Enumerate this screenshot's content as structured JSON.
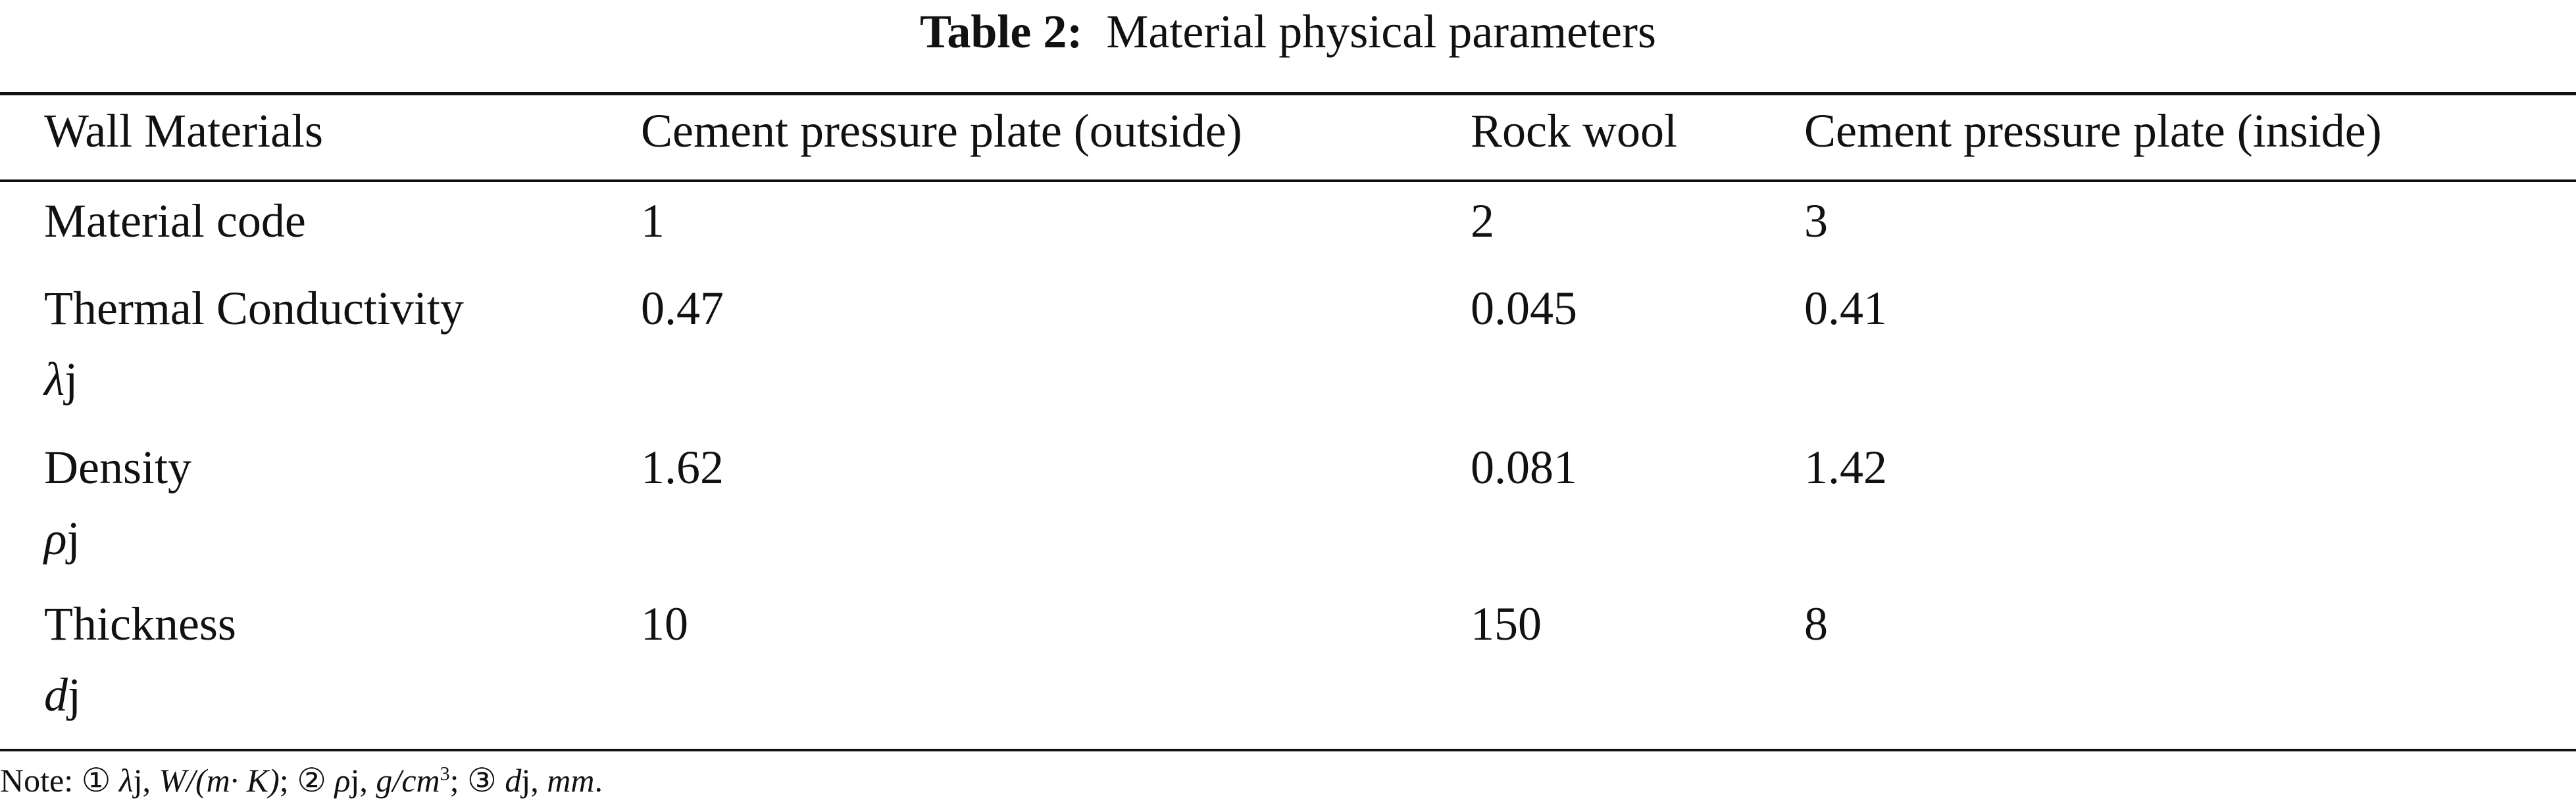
{
  "title": {
    "label": "Table 2:",
    "text": "Material physical parameters"
  },
  "table": {
    "header": [
      "Wall Materials",
      "Cement pressure plate (outside)",
      "Rock wool",
      "Cement pressure plate (inside)"
    ],
    "rows": [
      [
        "Material code",
        "1",
        "2",
        "3"
      ],
      [
        {
          "name": "Thermal Conductivity",
          "symbol": "λ",
          "suffix": "j"
        },
        "0.47",
        "0.045",
        "0.41"
      ],
      [
        {
          "name": "Density",
          "symbol": "ρ",
          "suffix": "j"
        },
        "1.62",
        "0.081",
        "1.42"
      ],
      [
        {
          "name": "Thickness",
          "symbol": "d",
          "suffix": "j"
        },
        "10",
        "150",
        "8"
      ]
    ]
  },
  "note": [
    "Note: ① ",
    "λ",
    "j, ",
    "W/(m· K)",
    "; ② ",
    "ρ",
    "j, ",
    "g/cm",
    "3",
    "; ③ ",
    "d",
    "j, ",
    "mm",
    "."
  ]
}
